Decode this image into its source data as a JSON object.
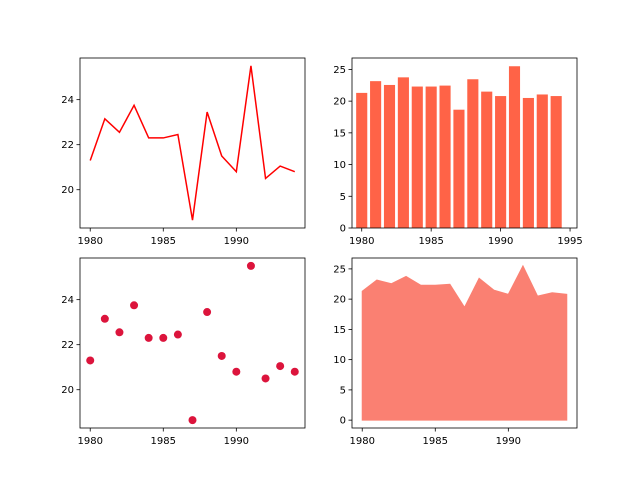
{
  "figure": {
    "colors": {
      "line": "#ff0000",
      "bar": "#ff6347",
      "scatter": "#dc143c",
      "area": "#fa8072",
      "axes": "#000000",
      "background": "#ffffff"
    }
  },
  "chart_data": [
    {
      "type": "line",
      "title": "",
      "xlabel": "",
      "ylabel": "",
      "x": [
        1980,
        1981,
        1982,
        1983,
        1984,
        1985,
        1986,
        1987,
        1988,
        1989,
        1990,
        1991,
        1992,
        1993,
        1994
      ],
      "values": [
        21.3,
        23.15,
        22.55,
        23.75,
        22.3,
        22.3,
        22.45,
        18.65,
        23.45,
        21.5,
        20.8,
        25.5,
        20.5,
        21.05,
        20.8
      ],
      "xlim": [
        1979.3,
        1994.7
      ],
      "ylim": [
        18.3,
        25.85
      ],
      "xticks": [
        1980,
        1985,
        1990
      ],
      "yticks": [
        20,
        22,
        24
      ],
      "grid": false,
      "color": "#ff0000"
    },
    {
      "type": "bar",
      "title": "",
      "xlabel": "",
      "ylabel": "",
      "x": [
        1980,
        1981,
        1982,
        1983,
        1984,
        1985,
        1986,
        1987,
        1988,
        1989,
        1990,
        1991,
        1992,
        1993,
        1994
      ],
      "values": [
        21.3,
        23.15,
        22.55,
        23.75,
        22.3,
        22.3,
        22.45,
        18.65,
        23.45,
        21.5,
        20.8,
        25.5,
        20.5,
        21.05,
        20.8
      ],
      "bar_width": 0.8,
      "xlim": [
        1979.3,
        1995.5
      ],
      "ylim": [
        0,
        26.8
      ],
      "xticks": [
        1980,
        1985,
        1990,
        1995
      ],
      "yticks": [
        0,
        5,
        10,
        15,
        20,
        25
      ],
      "grid": false,
      "color": "#ff6347"
    },
    {
      "type": "scatter",
      "title": "",
      "xlabel": "",
      "ylabel": "",
      "x": [
        1980,
        1981,
        1982,
        1983,
        1984,
        1985,
        1986,
        1987,
        1988,
        1989,
        1990,
        1991,
        1992,
        1993,
        1994
      ],
      "values": [
        21.3,
        23.15,
        22.55,
        23.75,
        22.3,
        22.3,
        22.45,
        18.65,
        23.45,
        21.5,
        20.8,
        25.5,
        20.5,
        21.05,
        20.8
      ],
      "xlim": [
        1979.3,
        1994.7
      ],
      "ylim": [
        18.3,
        25.85
      ],
      "xticks": [
        1980,
        1985,
        1990
      ],
      "yticks": [
        20,
        22,
        24
      ],
      "grid": false,
      "color": "#dc143c"
    },
    {
      "type": "area",
      "title": "",
      "xlabel": "",
      "ylabel": "",
      "x": [
        1980,
        1981,
        1982,
        1983,
        1984,
        1985,
        1986,
        1987,
        1988,
        1989,
        1990,
        1991,
        1992,
        1993,
        1994
      ],
      "values": [
        21.3,
        23.15,
        22.55,
        23.75,
        22.3,
        22.3,
        22.45,
        18.65,
        23.45,
        21.5,
        20.8,
        25.5,
        20.5,
        21.05,
        20.8
      ],
      "xlim": [
        1979.3,
        1994.7
      ],
      "ylim": [
        -1.3,
        26.8
      ],
      "xticks": [
        1980,
        1985,
        1990
      ],
      "yticks": [
        0,
        5,
        10,
        15,
        20,
        25
      ],
      "grid": false,
      "color": "#fa8072"
    }
  ]
}
